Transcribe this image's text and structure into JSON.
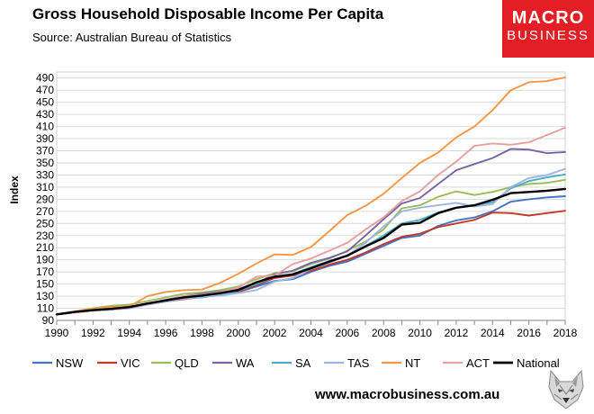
{
  "header": {
    "title": "Gross Household Disposable Income Per Capita",
    "subtitle": "Source: Australian Bureau of Statistics"
  },
  "brand": {
    "logo_line1": "MACRO",
    "logo_line2": "BUSINESS",
    "website": "www.macrobusiness.com.au",
    "accent_color": "#e31e24"
  },
  "chart_data": {
    "type": "line",
    "title": "Gross Household Disposable Income Per Capita",
    "subtitle": "Source: Australian Bureau of Statistics",
    "xlabel": "",
    "ylabel": "Index",
    "ylim": [
      90,
      500
    ],
    "yticks": [
      90,
      110,
      130,
      150,
      170,
      190,
      210,
      230,
      250,
      270,
      290,
      310,
      330,
      350,
      370,
      390,
      410,
      430,
      450,
      470,
      490
    ],
    "xticks": [
      1990,
      1992,
      1994,
      1996,
      1998,
      2000,
      2002,
      2004,
      2006,
      2008,
      2010,
      2012,
      2014,
      2016,
      2018
    ],
    "grid": "horizontal",
    "legend_position": "bottom",
    "x": [
      1990,
      1991,
      1992,
      1993,
      1994,
      1995,
      1996,
      1997,
      1998,
      1999,
      2000,
      2001,
      2002,
      2003,
      2004,
      2005,
      2006,
      2007,
      2008,
      2009,
      2010,
      2011,
      2012,
      2013,
      2014,
      2015,
      2016,
      2017,
      2018
    ],
    "series": [
      {
        "name": "NSW",
        "color": "#4472c4",
        "values": [
          100,
          104,
          107,
          110,
          112,
          117,
          122,
          126,
          130,
          133,
          137,
          146,
          155,
          158,
          170,
          180,
          187,
          200,
          213,
          226,
          230,
          246,
          255,
          260,
          270,
          286,
          290,
          293,
          295
        ]
      },
      {
        "name": "VIC",
        "color": "#c0392b",
        "values": [
          100,
          103,
          106,
          108,
          110,
          116,
          121,
          125,
          129,
          133,
          137,
          148,
          160,
          164,
          172,
          182,
          190,
          202,
          216,
          228,
          233,
          244,
          250,
          256,
          268,
          267,
          263,
          267,
          271
        ]
      },
      {
        "name": "QLD",
        "color": "#9bbb59",
        "values": [
          100,
          105,
          110,
          114,
          116,
          122,
          128,
          134,
          136,
          140,
          146,
          158,
          168,
          171,
          183,
          192,
          205,
          220,
          240,
          275,
          280,
          294,
          303,
          297,
          302,
          310,
          315,
          317,
          322
        ]
      },
      {
        "name": "WA",
        "color": "#7b62a3",
        "values": [
          100,
          104,
          107,
          109,
          112,
          118,
          124,
          130,
          134,
          138,
          142,
          152,
          166,
          172,
          185,
          193,
          204,
          230,
          257,
          283,
          292,
          315,
          338,
          348,
          358,
          373,
          372,
          366,
          368
        ]
      },
      {
        "name": "SA",
        "color": "#4bacc6",
        "values": [
          100,
          103,
          106,
          108,
          111,
          117,
          121,
          126,
          128,
          132,
          139,
          150,
          162,
          166,
          178,
          188,
          196,
          213,
          230,
          250,
          256,
          268,
          276,
          280,
          285,
          308,
          320,
          326,
          331
        ]
      },
      {
        "name": "TAS",
        "color": "#9fb4de",
        "values": [
          100,
          103,
          106,
          108,
          110,
          116,
          121,
          126,
          129,
          131,
          135,
          140,
          154,
          160,
          175,
          185,
          197,
          218,
          245,
          270,
          276,
          280,
          284,
          278,
          282,
          310,
          325,
          330,
          340
        ]
      },
      {
        "name": "NT",
        "color": "#f79646",
        "values": [
          100,
          105,
          109,
          112,
          113,
          130,
          137,
          140,
          141,
          152,
          167,
          184,
          199,
          198,
          211,
          237,
          264,
          279,
          299,
          325,
          350,
          367,
          392,
          410,
          437,
          470,
          483,
          485,
          491
        ]
      },
      {
        "name": "ACT",
        "color": "#e6a0a0",
        "values": [
          100,
          103,
          106,
          109,
          113,
          118,
          123,
          130,
          132,
          137,
          144,
          162,
          164,
          183,
          192,
          205,
          218,
          240,
          260,
          287,
          303,
          330,
          352,
          378,
          382,
          380,
          384,
          396,
          408
        ]
      },
      {
        "name": "National",
        "color": "#000000",
        "values": [
          100,
          104,
          107,
          109,
          112,
          118,
          123,
          128,
          131,
          135,
          140,
          153,
          162,
          166,
          176,
          187,
          197,
          212,
          226,
          248,
          251,
          267,
          276,
          280,
          289,
          300,
          302,
          304,
          307
        ]
      }
    ]
  }
}
